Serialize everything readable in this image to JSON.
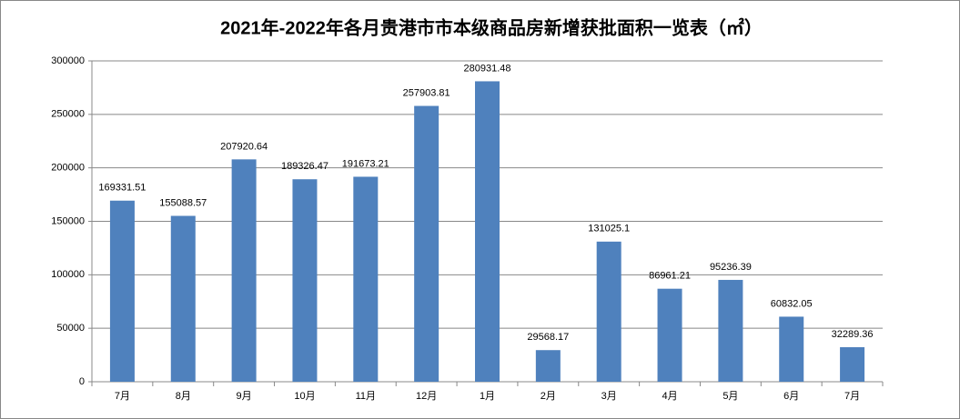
{
  "chart_data": {
    "type": "bar",
    "title": "2021年-2022年各月贵港市市本级商品房新增获批面积一览表（㎡）",
    "categories": [
      "7月",
      "8月",
      "9月",
      "10月",
      "11月",
      "12月",
      "1月",
      "2月",
      "3月",
      "4月",
      "5月",
      "6月",
      "7月"
    ],
    "values": [
      169331.51,
      155088.57,
      207920.64,
      189326.47,
      191673.21,
      257903.81,
      280931.48,
      29568.17,
      131025.1,
      86961.21,
      95236.39,
      60832.05,
      32289.36
    ],
    "color": "#4f81bd",
    "ylim": [
      0,
      300000
    ],
    "yticks": [
      0,
      50000,
      100000,
      150000,
      200000,
      250000,
      300000
    ],
    "grid": true
  }
}
